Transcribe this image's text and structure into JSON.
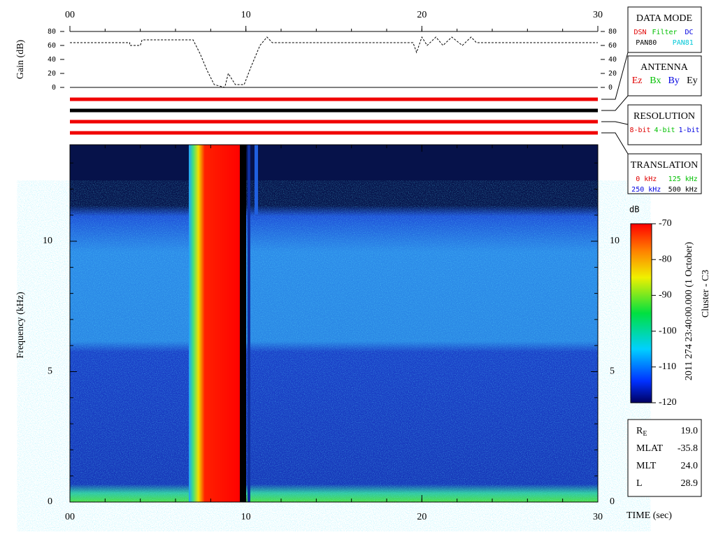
{
  "x_axis": {
    "label": "TIME (sec)",
    "xlim": [
      0,
      30
    ],
    "xticks": [
      {
        "value": 0,
        "label": "00"
      },
      10,
      20,
      30
    ]
  },
  "gain": {
    "ylabel": "Gain (dB)",
    "ylim": [
      0,
      80
    ],
    "yticks": [
      0,
      20,
      40,
      60,
      80
    ],
    "x": [
      0,
      3.4,
      3.4,
      4,
      4.1,
      7,
      7.4,
      7.8,
      8.2,
      8.8,
      9.0,
      9.4,
      9.9,
      10.3,
      10.8,
      11.2,
      11.5,
      19.5,
      19.7,
      20.0,
      20.3,
      20.8,
      21.2,
      21.7,
      22.3,
      22.8,
      23.1,
      30
    ],
    "values": [
      64,
      64,
      60,
      60,
      68,
      68,
      48,
      24,
      4,
      0,
      20,
      4,
      4,
      30,
      60,
      72,
      64,
      64,
      50,
      72,
      60,
      72,
      60,
      72,
      60,
      72,
      64,
      64
    ]
  },
  "spectrogram": {
    "ylabel": "Frequency (kHz)",
    "ylim": [
      0,
      13.7
    ],
    "yticks": [
      0,
      5,
      10
    ]
  },
  "colorbar": {
    "unit": "dB",
    "lim": [
      -120,
      -70
    ],
    "ticks": [
      -120,
      -110,
      -100,
      -90,
      -80,
      -70
    ]
  },
  "timestamp": "2011 274 23:40:00.000 (1 October)",
  "spacecraft": "Cluster - C3",
  "data_mode": {
    "title": "DATA MODE",
    "rows": [
      [
        {
          "label": "DSN",
          "color": "#e00000"
        },
        {
          "label": "Filter",
          "color": "#00c000"
        },
        {
          "label": "DC",
          "color": "#0000e0"
        }
      ],
      [
        {
          "label": "PAN80",
          "color": "#000000"
        },
        {
          "label": "PAN81",
          "color": "#00c8d8"
        }
      ]
    ]
  },
  "antenna": {
    "title": "ANTENNA",
    "rows": [
      [
        {
          "label": "Ez",
          "color": "#e00000"
        },
        {
          "label": "Bx",
          "color": "#00c000"
        },
        {
          "label": "By",
          "color": "#0000e0"
        },
        {
          "label": "Ey",
          "color": "#000000"
        }
      ]
    ]
  },
  "resolution": {
    "title": "RESOLUTION",
    "rows": [
      [
        {
          "label": "8-bit",
          "color": "#e00000"
        },
        {
          "label": "4-bit",
          "color": "#00c000"
        },
        {
          "label": "1-bit",
          "color": "#0000e0"
        }
      ]
    ]
  },
  "translation": {
    "title": "TRANSLATION",
    "rows": [
      [
        {
          "label": "0 kHz",
          "color": "#e00000"
        },
        {
          "label": "125 kHz",
          "color": "#00c000"
        }
      ],
      [
        {
          "label": "250 kHz",
          "color": "#0000e0"
        },
        {
          "label": "500 kHz",
          "color": "#000000"
        }
      ]
    ]
  },
  "ephemeris": [
    {
      "label": "R",
      "sub": "E",
      "value": "19.0"
    },
    {
      "label": "MLAT",
      "value": "-35.8"
    },
    {
      "label": "MLT",
      "value": "24.0"
    },
    {
      "label": "L",
      "value": "28.9"
    }
  ]
}
